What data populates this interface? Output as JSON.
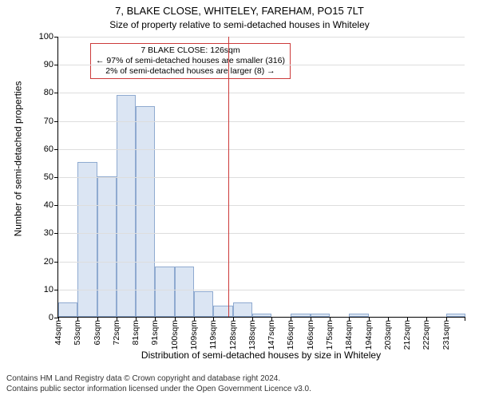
{
  "title_main": "7, BLAKE CLOSE, WHITELEY, FAREHAM, PO15 7LT",
  "title_sub": "Size of property relative to semi-detached houses in Whiteley",
  "ylabel": "Number of semi-detached properties",
  "xlabel": "Distribution of semi-detached houses by size in Whiteley",
  "chart": {
    "type": "histogram",
    "ylim": [
      0,
      100
    ],
    "ytick_step": 10,
    "background_color": "#ffffff",
    "grid_color": "#dddddd",
    "axis_color": "#000000",
    "bar_fill": "#dbe5f3",
    "bar_border": "#8faad0",
    "tick_fontsize": 11,
    "label_fontsize": 12,
    "title_fontsize": 13,
    "categories": [
      "44sqm",
      "53sqm",
      "63sqm",
      "72sqm",
      "81sqm",
      "91sqm",
      "100sqm",
      "109sqm",
      "119sqm",
      "128sqm",
      "138sqm",
      "147sqm",
      "156sqm",
      "166sqm",
      "175sqm",
      "184sqm",
      "194sqm",
      "203sqm",
      "212sqm",
      "222sqm",
      "231sqm"
    ],
    "values": [
      5,
      55,
      50,
      79,
      75,
      18,
      18,
      9,
      4,
      5,
      1,
      0,
      1,
      1,
      0,
      1,
      0,
      0,
      0,
      0,
      1
    ],
    "reference": {
      "x_index": 8.75,
      "color": "#cc3b3b"
    }
  },
  "annotation": {
    "border_color": "#cc3b3b",
    "line1": "7 BLAKE CLOSE: 126sqm",
    "line2": "← 97% of semi-detached houses are smaller (316)",
    "line3": "2% of semi-detached houses are larger (8) →",
    "fontsize": 10.5
  },
  "footer": {
    "line1": "Contains HM Land Registry data © Crown copyright and database right 2024.",
    "line2": "Contains public sector information licensed under the Open Government Licence v3.0.",
    "fontsize": 10
  }
}
